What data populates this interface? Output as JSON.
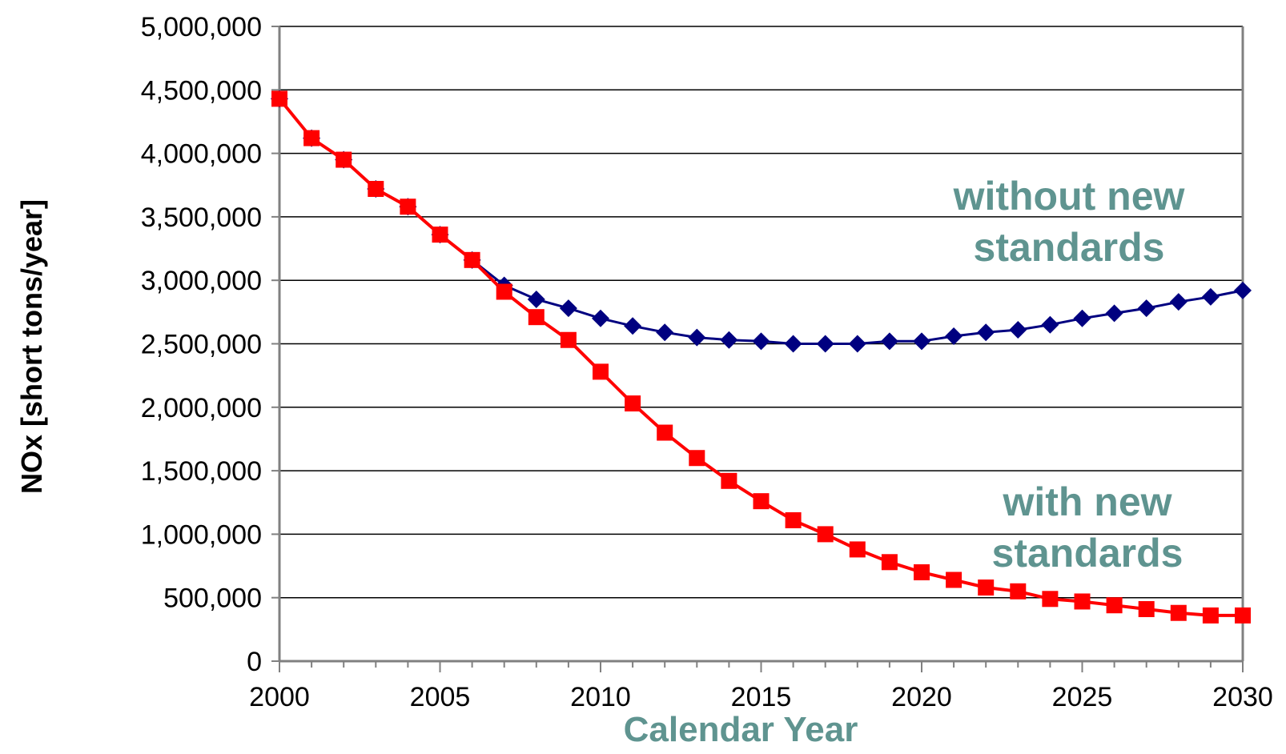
{
  "chart_data": {
    "type": "line",
    "title": "",
    "xlabel": "Calendar Year",
    "ylabel": "NOx [short tons/year]",
    "xlim": [
      2000,
      2030
    ],
    "ylim": [
      0,
      5000000
    ],
    "grid": true,
    "x_ticks": [
      "2000",
      "2005",
      "2010",
      "2015",
      "2020",
      "2025",
      "2030"
    ],
    "y_ticks": [
      "0",
      "500,000",
      "1,000,000",
      "1,500,000",
      "2,000,000",
      "2,500,000",
      "3,000,000",
      "3,500,000",
      "4,000,000",
      "4,500,000",
      "5,000,000"
    ],
    "x": [
      2000,
      2001,
      2002,
      2003,
      2004,
      2005,
      2006,
      2007,
      2008,
      2009,
      2010,
      2011,
      2012,
      2013,
      2014,
      2015,
      2016,
      2017,
      2018,
      2019,
      2020,
      2021,
      2022,
      2023,
      2024,
      2025,
      2026,
      2027,
      2028,
      2029,
      2030
    ],
    "series": [
      {
        "key": "without",
        "color": "#000080",
        "marker": "diamond",
        "values": [
          4430000,
          4120000,
          3950000,
          3720000,
          3580000,
          3360000,
          3160000,
          2960000,
          2850000,
          2780000,
          2700000,
          2640000,
          2590000,
          2550000,
          2530000,
          2520000,
          2500000,
          2500000,
          2500000,
          2520000,
          2520000,
          2560000,
          2590000,
          2610000,
          2650000,
          2700000,
          2740000,
          2780000,
          2830000,
          2870000,
          2920000
        ]
      },
      {
        "key": "with",
        "color": "#ff0000",
        "marker": "square",
        "values": [
          4430000,
          4120000,
          3950000,
          3720000,
          3580000,
          3360000,
          3160000,
          2910000,
          2710000,
          2530000,
          2280000,
          2030000,
          1800000,
          1600000,
          1420000,
          1260000,
          1110000,
          1000000,
          880000,
          780000,
          700000,
          640000,
          580000,
          550000,
          490000,
          470000,
          440000,
          410000,
          380000,
          360000,
          360000
        ]
      }
    ],
    "annotations": {
      "without": [
        "without new",
        "standards"
      ],
      "with": [
        "with new",
        "standards"
      ]
    }
  }
}
